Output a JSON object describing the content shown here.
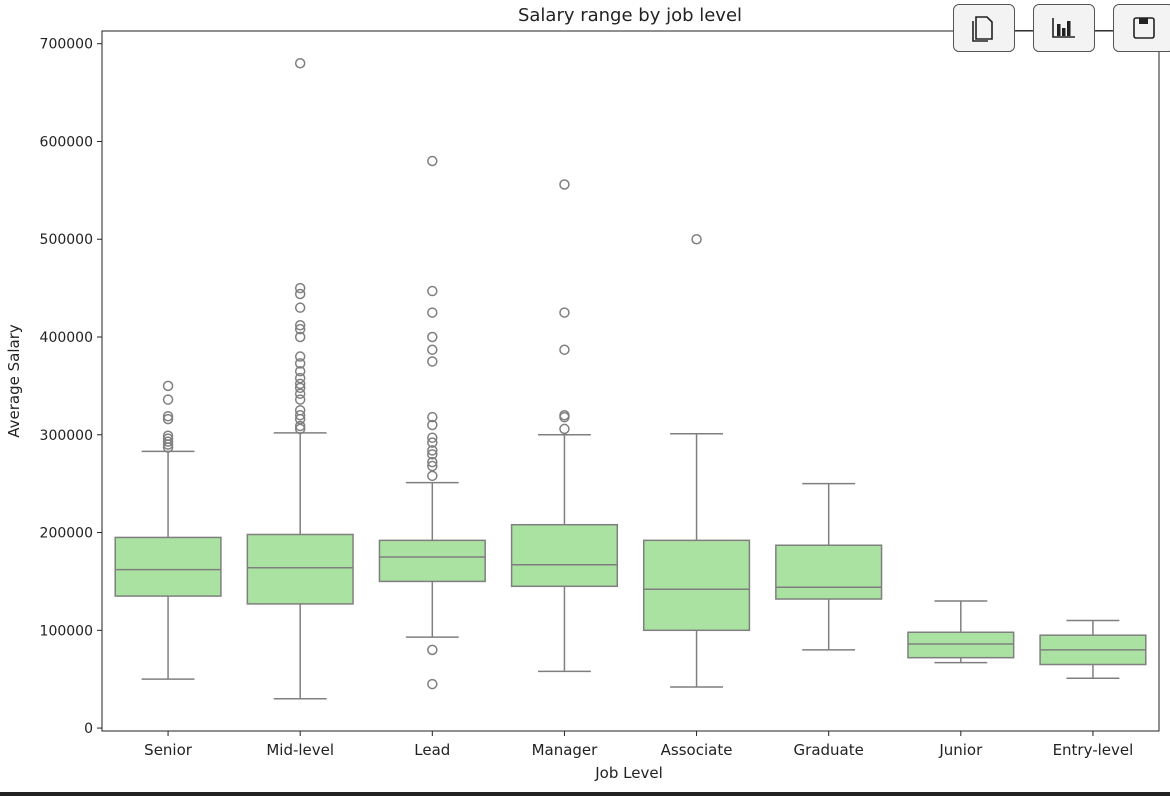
{
  "chart_data": {
    "type": "box",
    "title": "Salary range by job level",
    "xlabel": "Job Level",
    "ylabel": "Average Salary",
    "ylim": [
      -3000,
      713000
    ],
    "yticks": [
      0,
      100000,
      200000,
      300000,
      400000,
      500000,
      600000,
      700000
    ],
    "box_color": "#aae2a1",
    "line_color": "#7f7f7f",
    "grid": false,
    "categories": [
      "Senior",
      "Mid-level",
      "Lead",
      "Manager",
      "Associate",
      "Graduate",
      "Junior",
      "Entry-level"
    ],
    "boxes": [
      {
        "whislo": 50000,
        "q1": 135000,
        "med": 162000,
        "q3": 195000,
        "whishi": 283000,
        "fliers": [
          287000,
          290000,
          293000,
          296000,
          299000,
          316000,
          319000,
          336000,
          350000
        ]
      },
      {
        "whislo": 30000,
        "q1": 127000,
        "med": 164000,
        "q3": 198000,
        "whishi": 302000,
        "fliers": [
          306000,
          309000,
          316000,
          320000,
          325000,
          336000,
          342000,
          348000,
          352000,
          358000,
          365000,
          373000,
          380000,
          400000,
          408000,
          412000,
          430000,
          444000,
          450000,
          680000
        ]
      },
      {
        "whislo": 93000,
        "q1": 150000,
        "med": 175000,
        "q3": 192000,
        "whishi": 251000,
        "fliers": [
          45000,
          80000,
          258000,
          268000,
          272000,
          280000,
          284000,
          292000,
          297000,
          310000,
          318000,
          375000,
          387000,
          400000,
          425000,
          447000,
          580000
        ]
      },
      {
        "whislo": 58000,
        "q1": 145000,
        "med": 167000,
        "q3": 208000,
        "whishi": 300000,
        "fliers": [
          306000,
          318000,
          320000,
          387000,
          425000,
          556000
        ]
      },
      {
        "whislo": 42000,
        "q1": 100000,
        "med": 142000,
        "q3": 192000,
        "whishi": 301000,
        "fliers": [
          500000
        ]
      },
      {
        "whislo": 80000,
        "q1": 132000,
        "med": 144000,
        "q3": 187000,
        "whishi": 250000,
        "fliers": []
      },
      {
        "whislo": 67000,
        "q1": 72000,
        "med": 86000,
        "q3": 98000,
        "whishi": 130000,
        "fliers": []
      },
      {
        "whislo": 51000,
        "q1": 65000,
        "med": 80000,
        "q3": 95000,
        "whishi": 110000,
        "fliers": []
      }
    ]
  },
  "toolbar": {
    "buttons": [
      {
        "icon": "copy-icon"
      },
      {
        "icon": "bar-chart-icon"
      },
      {
        "icon": "save-icon"
      }
    ]
  }
}
